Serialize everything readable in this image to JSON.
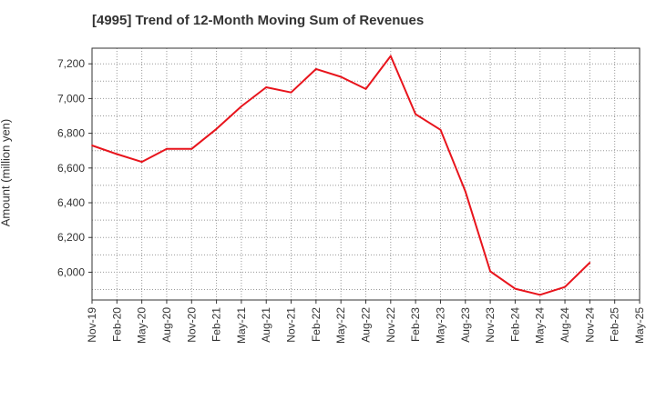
{
  "chart_data": {
    "type": "line",
    "title": "[4995]  Trend of 12-Month Moving Sum of Revenues",
    "xlabel": "",
    "ylabel": "Amount (million yen)",
    "categories": [
      "Nov-19",
      "Feb-20",
      "May-20",
      "Aug-20",
      "Nov-20",
      "Feb-21",
      "May-21",
      "Aug-21",
      "Nov-21",
      "Feb-22",
      "May-22",
      "Aug-22",
      "Nov-22",
      "Feb-23",
      "May-23",
      "Aug-23",
      "Nov-23",
      "Feb-24",
      "May-24",
      "Aug-24",
      "Nov-24",
      "Feb-25",
      "May-25"
    ],
    "series": [
      {
        "color": "#e8141c",
        "values": [
          6730,
          6680,
          6635,
          6710,
          6710,
          6825,
          6955,
          7065,
          7035,
          7170,
          7125,
          7055,
          7245,
          6910,
          6820,
          6465,
          6005,
          5905,
          5870,
          5915,
          6055,
          null,
          null
        ]
      }
    ],
    "yticks": [
      6000,
      6200,
      6400,
      6600,
      6800,
      7000,
      7200
    ],
    "ytick_labels": [
      "6,000",
      "6,200",
      "6,400",
      "6,600",
      "6,800",
      "7,000",
      "7,200"
    ],
    "ylim": [
      5840,
      7290
    ],
    "grid": true
  }
}
